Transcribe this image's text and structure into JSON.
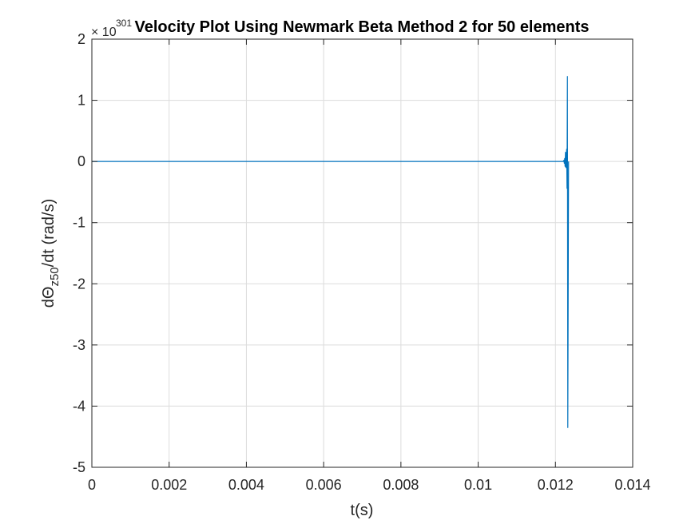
{
  "chart_data": {
    "type": "line",
    "title": "Velocity Plot Using Newmark Beta Method 2 for 50 elements",
    "xlabel": "t(s)",
    "ylabel": {
      "prefix": "dΘ",
      "subscript": "z50",
      "suffix": "/dt  (rad/s)"
    },
    "y_exponent": {
      "base": "× 10",
      "power": "301"
    },
    "xlim": [
      0,
      0.014
    ],
    "ylim": [
      -5,
      2
    ],
    "y_scale_factor": "1e301",
    "grid": true,
    "xticks": [
      0,
      0.002,
      0.004,
      0.006,
      0.008,
      0.01,
      0.012,
      0.014
    ],
    "xtick_labels": [
      "0",
      "0.002",
      "0.004",
      "0.006",
      "0.008",
      "0.01",
      "0.012",
      "0.014"
    ],
    "yticks": [
      -5,
      -4,
      -3,
      -2,
      -1,
      0,
      1,
      2
    ],
    "ytick_labels": [
      "-5",
      "-4",
      "-3",
      "-2",
      "-1",
      "0",
      "1",
      "2"
    ],
    "series": [
      {
        "color": "#0072BD",
        "x": [
          0,
          0.0121,
          0.0122,
          0.01222,
          0.01223,
          0.01224,
          0.01225,
          0.01226,
          0.01227,
          0.01229,
          0.0123,
          0.01231,
          0.01232,
          0.01234
        ],
        "y": [
          0,
          0,
          0,
          0.02,
          -0.03,
          0.05,
          -0.08,
          0.15,
          -0.1,
          0.2,
          -0.44,
          1.39,
          -4.35,
          0
        ]
      }
    ]
  }
}
